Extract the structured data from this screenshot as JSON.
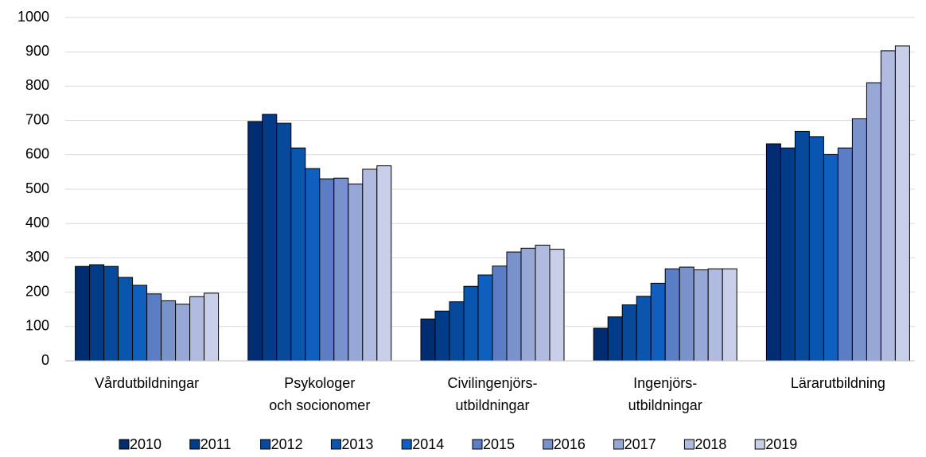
{
  "chart_data": {
    "type": "bar",
    "categories": [
      [
        "Vårdutbildningar"
      ],
      [
        "Psykologer",
        "och socionomer"
      ],
      [
        "Civilingenjörs-",
        "utbildningar"
      ],
      [
        "Ingenjörs-",
        "utbildningar"
      ],
      [
        "Lärarutbildning"
      ]
    ],
    "series": [
      {
        "name": "2010",
        "color": "#002d72",
        "values": [
          275,
          697,
          122,
          95,
          632
        ]
      },
      {
        "name": "2011",
        "color": "#023c88",
        "values": [
          280,
          718,
          145,
          128,
          620
        ]
      },
      {
        "name": "2012",
        "color": "#074a9c",
        "values": [
          275,
          692,
          172,
          163,
          668
        ]
      },
      {
        "name": "2013",
        "color": "#0a55ae",
        "values": [
          243,
          620,
          217,
          188,
          653
        ]
      },
      {
        "name": "2014",
        "color": "#0f5fbf",
        "values": [
          220,
          560,
          250,
          226,
          601
        ]
      },
      {
        "name": "2015",
        "color": "#5a7dc6",
        "values": [
          195,
          530,
          276,
          268,
          620
        ]
      },
      {
        "name": "2016",
        "color": "#7a92cc",
        "values": [
          175,
          532,
          317,
          273,
          705
        ]
      },
      {
        "name": "2017",
        "color": "#97a8d6",
        "values": [
          165,
          515,
          328,
          265,
          810
        ]
      },
      {
        "name": "2018",
        "color": "#b0bbdf",
        "values": [
          187,
          558,
          337,
          268,
          903
        ]
      },
      {
        "name": "2019",
        "color": "#c9cfe8",
        "values": [
          197,
          568,
          325,
          268,
          917
        ]
      }
    ],
    "ylim": [
      0,
      1000
    ],
    "yticks": [
      0,
      100,
      200,
      300,
      400,
      500,
      600,
      700,
      800,
      900,
      1000
    ],
    "grid": true,
    "legend": "bottom"
  }
}
